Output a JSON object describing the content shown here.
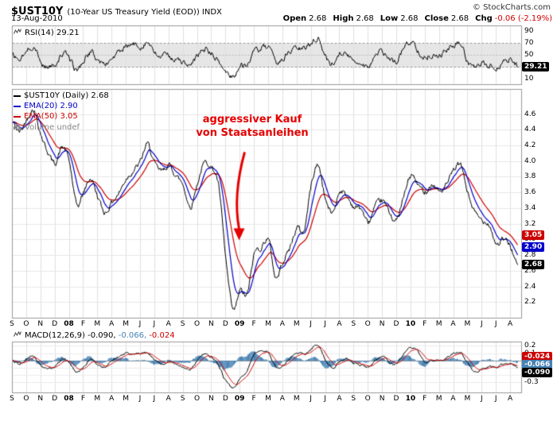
{
  "header": {
    "symbol": "$UST10Y",
    "subtitle": "(10-Year US Treasury Yield (EOD)) INDX",
    "copyright": "© StockCharts.com",
    "date": "13-Aug-2010",
    "quote": [
      {
        "label": "Open",
        "value": "2.68"
      },
      {
        "label": "High",
        "value": "2.68"
      },
      {
        "label": "Low",
        "value": "2.68"
      },
      {
        "label": "Close",
        "value": "2.68"
      },
      {
        "label": "Chg",
        "value": "-0.06 (-2.19%)",
        "color": "#cc0000"
      }
    ]
  },
  "annotation": {
    "line1": "aggressiver Kauf",
    "line2": "von Staatsanleihen",
    "color": "#e60000"
  },
  "rsi_panel": {
    "label": "RSI(14) 29.21",
    "badges": [
      {
        "text": "29.21",
        "value": 29.21,
        "bg": "#000000"
      }
    ]
  },
  "main_panel": {
    "legend": [
      {
        "text": "$UST10Y (Daily) 2.68",
        "color": "#000000",
        "icon": "dash"
      },
      {
        "text": "EMA(20) 2.90",
        "color": "#0000cc",
        "icon": "dash"
      },
      {
        "text": "EMA(50) 3.05",
        "color": "#cc0000",
        "icon": "dash"
      },
      {
        "text": "Volume undef",
        "color": "#888888",
        "icon": "volume"
      }
    ],
    "badges": [
      {
        "text": "3.05",
        "value": 3.05,
        "bg": "#cc0000"
      },
      {
        "text": "2.90",
        "value": 2.9,
        "bg": "#0000cc"
      },
      {
        "text": "2.68",
        "value": 2.68,
        "bg": "#000000"
      }
    ]
  },
  "macd_panel": {
    "label_parts": [
      {
        "text": "MACD(12,26,9) ",
        "color": "#000000"
      },
      {
        "text": "-0.090, ",
        "color": "#000000"
      },
      {
        "text": "-0.066, ",
        "color": "#4682b4"
      },
      {
        "text": "-0.024",
        "color": "#cc0000"
      }
    ],
    "badges": [
      {
        "text": "-0.024",
        "value": -0.024,
        "bg": "#cc0000"
      },
      {
        "text": "-0.066",
        "value": -0.066,
        "bg": "#4682b4"
      },
      {
        "text": "-0.090",
        "value": -0.09,
        "bg": "#000000"
      }
    ]
  },
  "months": [
    "S",
    "O",
    "N",
    "D",
    "08",
    "F",
    "M",
    "A",
    "M",
    "J",
    "J",
    "A",
    "S",
    "O",
    "N",
    "D",
    "09",
    "F",
    "M",
    "A",
    "M",
    "J",
    "J",
    "A",
    "S",
    "O",
    "N",
    "D",
    "10",
    "F",
    "M",
    "A",
    "M",
    "J",
    "J",
    "A"
  ],
  "bold_months": [
    "08",
    "09",
    "10"
  ],
  "chart_data": [
    {
      "panel": "rsi",
      "type": "line",
      "title": "RSI(14)",
      "last": 29.21,
      "ylim": [
        0,
        100
      ],
      "yticks": [
        90,
        70,
        50,
        30,
        10
      ],
      "overbought": 70,
      "oversold": 30,
      "midline": 50,
      "x_note": "semi-monthly values, Sep 2007 to 13-Aug-2010",
      "series": [
        {
          "name": "RSI(14)",
          "color": "#000000",
          "values": [
            50,
            42,
            55,
            65,
            38,
            30,
            35,
            52,
            45,
            25,
            40,
            55,
            42,
            35,
            45,
            55,
            62,
            68,
            65,
            72,
            52,
            48,
            50,
            42,
            38,
            30,
            48,
            60,
            52,
            38,
            22,
            15,
            30,
            35,
            55,
            60,
            62,
            38,
            45,
            55,
            62,
            60,
            72,
            78,
            48,
            35,
            55,
            50,
            40,
            38,
            32,
            48,
            55,
            42,
            40,
            62,
            72,
            60,
            45,
            52,
            50,
            58,
            65,
            68,
            40,
            28,
            35,
            32,
            28,
            38,
            42,
            29.21
          ]
        }
      ]
    },
    {
      "panel": "price",
      "type": "line",
      "title": "$UST10Y 10-Year US Treasury Yield (EOD) with EMA(20) and EMA(50)",
      "last": 2.68,
      "ylim": [
        2.0,
        4.92
      ],
      "yticks": [
        4.6,
        4.4,
        4.2,
        4.0,
        3.8,
        3.6,
        3.4,
        3.2,
        3.0,
        2.8,
        2.6,
        2.4,
        2.2
      ],
      "x_note": "semi-monthly anchor values, Sep 2007 to 13-Aug-2010",
      "series": [
        {
          "name": "$UST10Y (Daily)",
          "color": "#000000",
          "last": 2.68,
          "values": [
            4.5,
            4.38,
            4.53,
            4.66,
            4.35,
            4.12,
            3.98,
            4.18,
            4.0,
            3.45,
            3.6,
            3.78,
            3.55,
            3.35,
            3.48,
            3.6,
            3.78,
            3.88,
            4.0,
            4.22,
            3.97,
            3.88,
            3.95,
            3.82,
            3.7,
            3.42,
            3.72,
            3.98,
            3.92,
            3.68,
            2.75,
            2.1,
            2.35,
            2.3,
            2.82,
            2.9,
            3.0,
            2.52,
            2.72,
            2.9,
            3.15,
            3.12,
            3.7,
            3.95,
            3.52,
            3.35,
            3.62,
            3.55,
            3.42,
            3.4,
            3.22,
            3.42,
            3.5,
            3.35,
            3.25,
            3.55,
            3.82,
            3.7,
            3.62,
            3.7,
            3.62,
            3.7,
            3.88,
            3.95,
            3.6,
            3.35,
            3.25,
            3.2,
            2.95,
            3.0,
            2.92,
            2.68
          ]
        },
        {
          "name": "EMA(20)",
          "color": "#0000cc",
          "last": 2.9,
          "derived": "ema_of_price",
          "period": 20
        },
        {
          "name": "EMA(50)",
          "color": "#cc0000",
          "last": 3.05,
          "derived": "ema_of_price",
          "period": 50
        }
      ]
    },
    {
      "panel": "macd",
      "type": "line_histogram",
      "title": "MACD(12,26,9)",
      "ylim": [
        -0.44,
        0.26
      ],
      "yticks": [
        0.2,
        0.1,
        0.0,
        -0.1,
        -0.2,
        -0.3
      ],
      "x_note": "semi-monthly anchor values, Sep 2007 to 13-Aug-2010",
      "series": [
        {
          "name": "MACD line",
          "color": "#000000",
          "last": -0.09,
          "values": [
            0.0,
            -0.04,
            0.03,
            0.06,
            -0.06,
            -0.1,
            -0.08,
            0.02,
            -0.02,
            -0.16,
            -0.1,
            0.02,
            -0.04,
            -0.08,
            0.0,
            0.06,
            0.1,
            0.09,
            0.1,
            0.12,
            0.02,
            -0.04,
            -0.02,
            -0.05,
            -0.09,
            -0.12,
            0.0,
            0.1,
            0.04,
            -0.06,
            -0.28,
            -0.37,
            -0.25,
            -0.12,
            0.08,
            0.14,
            0.12,
            -0.08,
            -0.06,
            0.04,
            0.1,
            0.09,
            0.16,
            0.22,
            0.02,
            -0.1,
            0.0,
            0.02,
            -0.04,
            -0.05,
            -0.08,
            0.0,
            0.06,
            -0.02,
            -0.04,
            0.1,
            0.18,
            0.12,
            -0.02,
            0.01,
            0.02,
            0.05,
            0.1,
            0.11,
            -0.04,
            -0.14,
            -0.12,
            -0.08,
            -0.1,
            -0.05,
            -0.05,
            -0.09
          ]
        },
        {
          "name": "Signal line",
          "color": "#cc0000",
          "last": -0.024,
          "derived": "ema_of_macd",
          "period": 9
        },
        {
          "name": "Histogram",
          "color": "#4682b4",
          "last": -0.066,
          "derived": "macd_minus_signal"
        }
      ]
    }
  ]
}
